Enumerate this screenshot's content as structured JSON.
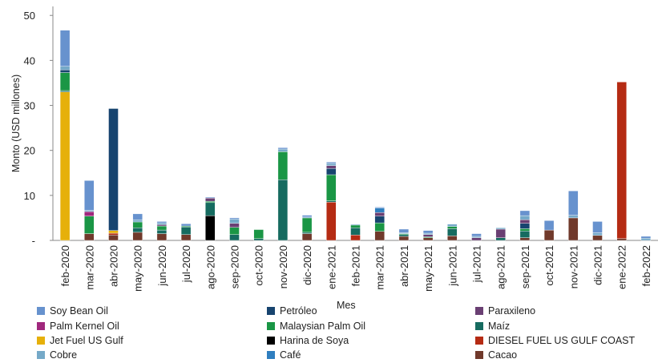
{
  "chart_data": {
    "type": "bar",
    "stacked": true,
    "title": "",
    "xlabel": "Mes",
    "ylabel": "Monto (USD millones)",
    "ylim": [
      0,
      52
    ],
    "yticks": [
      0,
      10,
      20,
      30,
      40,
      50
    ],
    "ytick_labels": [
      "-",
      "10",
      "20",
      "30",
      "40",
      "50"
    ],
    "grid": false,
    "legend_position": "bottom",
    "categories": [
      "feb-2020",
      "mar-2020",
      "abr-2020",
      "may-2020",
      "jun-2020",
      "jul-2020",
      "ago-2020",
      "sep-2020",
      "oct-2020",
      "nov-2020",
      "dic-2020",
      "ene-2021",
      "feb-2021",
      "mar-2021",
      "abr-2021",
      "may-2021",
      "jun-2021",
      "jul-2021",
      "ago-2021",
      "sep-2021",
      "oct-2021",
      "nov-2021",
      "dic-2021",
      "ene-2022",
      "feb-2022"
    ],
    "series": [
      {
        "name": "Harina de Soya",
        "color": "#000000",
        "values": [
          0,
          0,
          0,
          0,
          0,
          0,
          5.5,
          0,
          0,
          0,
          0,
          0,
          0,
          0,
          0,
          0,
          0,
          0,
          0,
          0,
          0,
          0,
          0,
          0,
          0
        ]
      },
      {
        "name": "Cacao",
        "color": "#70392b",
        "values": [
          0,
          1.5,
          1.2,
          1.8,
          1.5,
          1.3,
          0,
          0,
          0,
          0,
          1.5,
          0,
          0,
          2,
          0.9,
          0.6,
          1,
          0,
          0,
          0.6,
          2.3,
          5,
          1.1,
          0.4,
          0
        ]
      },
      {
        "name": "DIESEL FUEL US GULF COAST",
        "color": "#b52b13",
        "values": [
          0,
          0,
          0.4,
          0,
          0,
          0,
          0,
          0,
          0,
          0,
          0,
          8.5,
          1.2,
          0,
          0,
          0,
          0,
          0,
          0,
          0,
          0,
          0,
          0,
          34.8,
          0
        ]
      },
      {
        "name": "Jet Fuel US Gulf",
        "color": "#e6b00a",
        "values": [
          33,
          0,
          0.6,
          0,
          0,
          0,
          0,
          0,
          0,
          0,
          0,
          0,
          0,
          0,
          0,
          0,
          0,
          0,
          0,
          0,
          0,
          0,
          0,
          0,
          0
        ]
      },
      {
        "name": "Maíz",
        "color": "#166b60",
        "values": [
          0.3,
          0,
          0,
          1,
          0.8,
          1.7,
          2.9,
          1.3,
          0.4,
          13.5,
          0.3,
          0.3,
          1.6,
          0,
          0.4,
          0,
          1.6,
          0,
          0.6,
          1.5,
          0,
          0,
          0,
          0,
          0
        ]
      },
      {
        "name": "Malaysian Palm Oil",
        "color": "#1a9645",
        "values": [
          4,
          3.9,
          0,
          1.3,
          0.9,
          0.2,
          0.3,
          1.6,
          2,
          6.2,
          3.2,
          5.8,
          0.6,
          1.9,
          0.2,
          0.2,
          0.5,
          0,
          0,
          0.5,
          0,
          0,
          0,
          0,
          0
        ]
      },
      {
        "name": "Petróleo",
        "color": "#17446f",
        "values": [
          0.6,
          0,
          27.1,
          0,
          0,
          0,
          0,
          0,
          0,
          0,
          0,
          1.4,
          0,
          1.5,
          0,
          0,
          0,
          0,
          0,
          1.2,
          0,
          0,
          0,
          0,
          0
        ]
      },
      {
        "name": "Palm Kernel Oil",
        "color": "#a0287d",
        "values": [
          0,
          1,
          0,
          0,
          0,
          0,
          0,
          0,
          0,
          0,
          0,
          0,
          0,
          0,
          0,
          0,
          0,
          0,
          0,
          0,
          0,
          0,
          0,
          0,
          0
        ]
      },
      {
        "name": "Paraxileno",
        "color": "#6a3f73",
        "values": [
          0,
          0,
          0,
          0,
          0.3,
          0,
          0.7,
          0.9,
          0,
          0,
          0,
          0.6,
          0,
          0.8,
          0,
          0.5,
          0,
          0.6,
          1.9,
          0.8,
          0,
          0,
          0,
          0,
          0
        ]
      },
      {
        "name": "Café",
        "color": "#2f7ebf",
        "values": [
          0,
          0,
          0,
          0,
          0,
          0,
          0,
          0,
          0,
          0,
          0,
          0,
          0,
          1,
          0,
          0,
          0,
          0,
          0,
          0,
          0,
          0,
          0,
          0,
          0
        ]
      },
      {
        "name": "Cobre",
        "color": "#75a9c8",
        "values": [
          0.8,
          0.3,
          0,
          0.5,
          0.4,
          0,
          0,
          0.9,
          0,
          0.6,
          0.2,
          0.5,
          0.2,
          0,
          0.2,
          0.3,
          0.5,
          0.3,
          0.3,
          0.9,
          0,
          0.6,
          0.6,
          0,
          0.5
        ]
      },
      {
        "name": "Soy Bean Oil",
        "color": "#6792ce",
        "values": [
          8,
          6.6,
          0,
          1.3,
          0.3,
          0.5,
          0.2,
          0.3,
          0,
          0.3,
          0.4,
          0.3,
          0,
          0.2,
          0.8,
          0.6,
          0.1,
          0.6,
          0,
          1.1,
          2.1,
          5.4,
          2.5,
          0,
          0.4
        ]
      }
    ],
    "legend_order": [
      "Soy Bean Oil",
      "Petróleo",
      "Paraxileno",
      "Palm Kernel Oil",
      "Malaysian Palm Oil",
      "Maíz",
      "Jet Fuel US Gulf",
      "Harina de Soya",
      "DIESEL FUEL US GULF COAST",
      "Cobre",
      "Café",
      "Cacao"
    ]
  }
}
